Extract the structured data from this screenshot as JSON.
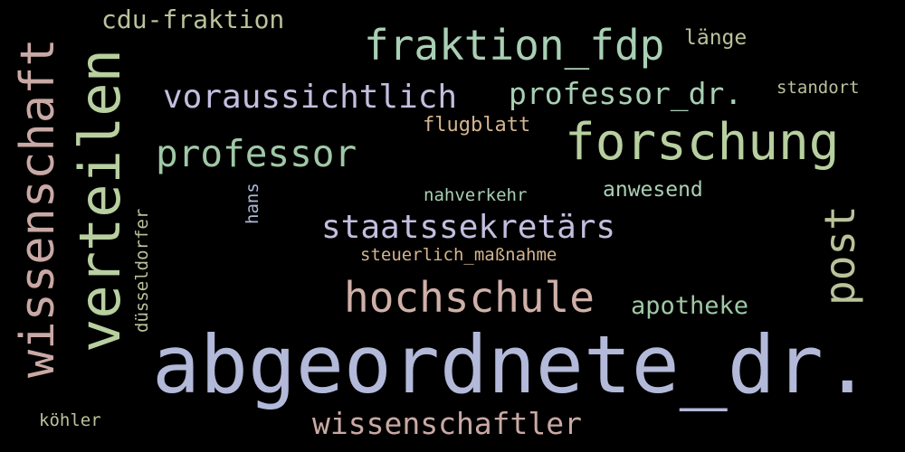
{
  "words": {
    "abgeordnete_dr": "abgeordnete_dr.",
    "verteilen": "verteilen",
    "wissenschaft": "wissenschaft",
    "forschung": "forschung",
    "fraktion_fdp": "fraktion_fdp",
    "hochschule": "hochschule",
    "professor": "professor",
    "voraussichtlich": "voraussichtlich",
    "staatssekretars": "staatssekretärs",
    "post": "post",
    "wissenschaftler": "wissenschaftler",
    "professor_dr": "professor_dr.",
    "cdu_fraktion": "cdu-fraktion",
    "apotheke": "apotheke",
    "anwesend": "anwesend",
    "lange": "länge",
    "flugblatt": "flugblatt",
    "standort": "standort",
    "nahverkehr": "nahverkehr",
    "steuerlich_massnahme": "steuerlich_maßnahme",
    "hans": "hans",
    "dusseldorfer": "düsseldorfer",
    "kohler": "köhler"
  }
}
